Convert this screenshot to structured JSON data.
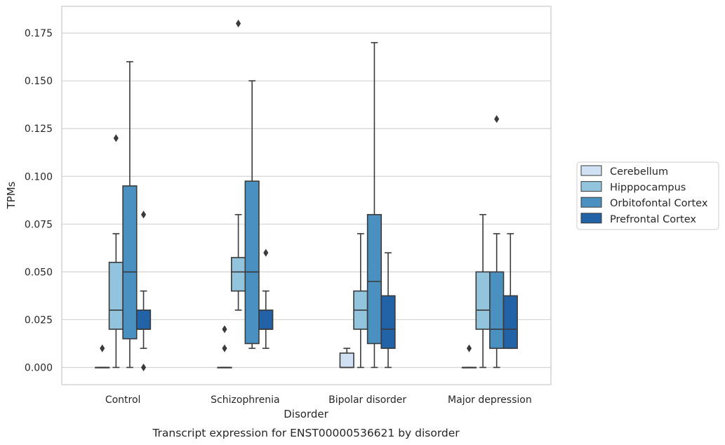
{
  "chart_data": {
    "type": "box",
    "title": "",
    "caption": "Transcript expression for ENST00000536621 by disorder",
    "xlabel": "Disorder",
    "ylabel": "TPMs",
    "ylim": [
      -0.009,
      0.189
    ],
    "yticks": [
      0.0,
      0.025,
      0.05,
      0.075,
      0.1,
      0.125,
      0.15,
      0.175
    ],
    "ytick_labels": [
      "0.000",
      "0.025",
      "0.050",
      "0.075",
      "0.100",
      "0.125",
      "0.150",
      "0.175"
    ],
    "grid": "horizontal",
    "legend_position": "right",
    "categories": [
      "Control",
      "Schizophrenia",
      "Bipolar disorder",
      "Major depression"
    ],
    "series": [
      {
        "name": "Cerebellum",
        "color": "#cfe1f2",
        "boxes": [
          {
            "q1": 0.0,
            "median": 0.0,
            "q3": 0.0,
            "whisker_low": 0.0,
            "whisker_high": 0.0,
            "outliers": [
              0.01
            ]
          },
          {
            "q1": 0.0,
            "median": 0.0,
            "q3": 0.0,
            "whisker_low": 0.0,
            "whisker_high": 0.0,
            "outliers": [
              0.01,
              0.02
            ]
          },
          {
            "q1": 0.0,
            "median": 0.0,
            "q3": 0.0075,
            "whisker_low": 0.0,
            "whisker_high": 0.01,
            "outliers": []
          },
          {
            "q1": 0.0,
            "median": 0.0,
            "q3": 0.0,
            "whisker_low": 0.0,
            "whisker_high": 0.0,
            "outliers": [
              0.01
            ]
          }
        ]
      },
      {
        "name": "Hipppocampus",
        "color": "#93c4de",
        "boxes": [
          {
            "q1": 0.02,
            "median": 0.03,
            "q3": 0.055,
            "whisker_low": 0.0,
            "whisker_high": 0.07,
            "outliers": [
              0.12
            ]
          },
          {
            "q1": 0.04,
            "median": 0.05,
            "q3": 0.0575,
            "whisker_low": 0.03,
            "whisker_high": 0.08,
            "outliers": [
              0.18
            ]
          },
          {
            "q1": 0.02,
            "median": 0.03,
            "q3": 0.04,
            "whisker_low": 0.0,
            "whisker_high": 0.07,
            "outliers": []
          },
          {
            "q1": 0.02,
            "median": 0.03,
            "q3": 0.05,
            "whisker_low": 0.0,
            "whisker_high": 0.08,
            "outliers": []
          }
        ]
      },
      {
        "name": "Orbitofontal Cortex",
        "color": "#4a91c2",
        "boxes": [
          {
            "q1": 0.015,
            "median": 0.05,
            "q3": 0.095,
            "whisker_low": 0.0,
            "whisker_high": 0.16,
            "outliers": []
          },
          {
            "q1": 0.0125,
            "median": 0.05,
            "q3": 0.0975,
            "whisker_low": 0.01,
            "whisker_high": 0.15,
            "outliers": []
          },
          {
            "q1": 0.0125,
            "median": 0.045,
            "q3": 0.08,
            "whisker_low": 0.0,
            "whisker_high": 0.17,
            "outliers": []
          },
          {
            "q1": 0.01,
            "median": 0.02,
            "q3": 0.05,
            "whisker_low": 0.0,
            "whisker_high": 0.07,
            "outliers": [
              0.13
            ]
          }
        ]
      },
      {
        "name": "Prefrontal Cortex",
        "color": "#2163a6",
        "boxes": [
          {
            "q1": 0.02,
            "median": 0.02,
            "q3": 0.03,
            "whisker_low": 0.01,
            "whisker_high": 0.04,
            "outliers": [
              0.08,
              0.0
            ]
          },
          {
            "q1": 0.02,
            "median": 0.02,
            "q3": 0.03,
            "whisker_low": 0.01,
            "whisker_high": 0.04,
            "outliers": [
              0.06
            ]
          },
          {
            "q1": 0.01,
            "median": 0.02,
            "q3": 0.0375,
            "whisker_low": 0.0,
            "whisker_high": 0.06,
            "outliers": []
          },
          {
            "q1": 0.01,
            "median": 0.02,
            "q3": 0.0375,
            "whisker_low": 0.01,
            "whisker_high": 0.07,
            "outliers": []
          }
        ]
      }
    ]
  }
}
